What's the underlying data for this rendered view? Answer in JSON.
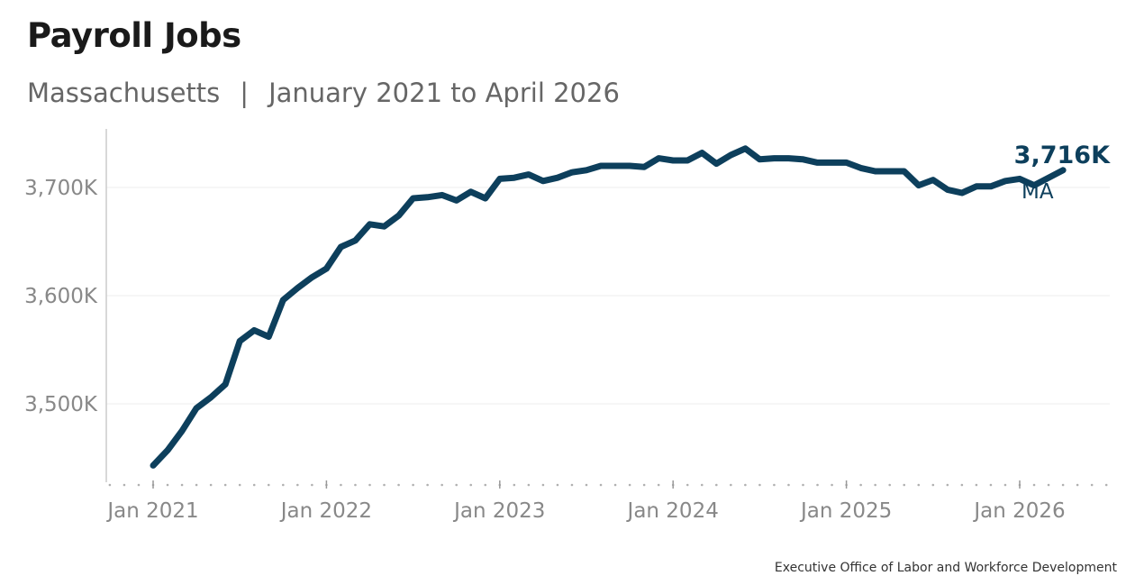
{
  "header": {
    "title": "Payroll Jobs",
    "subtitle_region": "Massachusetts",
    "subtitle_separator": "|",
    "subtitle_range": "January 2021 to April 2026"
  },
  "footer": {
    "source": "Executive Office of Labor and Workforce Development"
  },
  "colors": {
    "line": "#0d3f5c",
    "gridline": "#eeeeee",
    "axis": "#cccccc",
    "tick_label": "#888888"
  },
  "chart_data": {
    "type": "line",
    "title": "Payroll Jobs",
    "subtitle": "Massachusetts | January 2021 to April 2026",
    "xlabel": "",
    "ylabel": "",
    "y_unit": "thousands of jobs",
    "ylim": [
      3420,
      3770
    ],
    "yticks": [
      3500,
      3600,
      3700
    ],
    "ytick_labels": [
      "3,500K",
      "3,600K",
      "3,700K"
    ],
    "xtick_years": [
      2021,
      2022,
      2023,
      2024,
      2025,
      2026
    ],
    "xtick_labels": [
      "Jan 2021",
      "Jan 2022",
      "Jan 2023",
      "Jan 2024",
      "Jan 2025",
      "Jan 2026"
    ],
    "grid": "horizontal",
    "start": "2021-01",
    "end": "2026-04",
    "series": [
      {
        "name": "MA",
        "end_label": "3,716K",
        "dates": [
          "2021-01",
          "2021-02",
          "2021-03",
          "2021-04",
          "2021-05",
          "2021-06",
          "2021-07",
          "2021-08",
          "2021-09",
          "2021-10",
          "2021-11",
          "2021-12",
          "2022-01",
          "2022-02",
          "2022-03",
          "2022-04",
          "2022-05",
          "2022-06",
          "2022-07",
          "2022-08",
          "2022-09",
          "2022-10",
          "2022-11",
          "2022-12",
          "2023-01",
          "2023-02",
          "2023-03",
          "2023-04",
          "2023-05",
          "2023-06",
          "2023-07",
          "2023-08",
          "2023-09",
          "2023-10",
          "2023-11",
          "2023-12",
          "2024-01",
          "2024-02",
          "2024-03",
          "2024-04",
          "2024-05",
          "2024-06",
          "2024-07",
          "2024-08",
          "2024-09",
          "2024-10",
          "2024-11",
          "2024-12",
          "2025-01",
          "2025-02",
          "2025-03",
          "2025-04",
          "2025-05",
          "2025-06",
          "2025-07",
          "2025-08",
          "2025-09",
          "2025-10",
          "2025-11",
          "2025-12",
          "2026-01",
          "2026-02",
          "2026-03",
          "2026-04"
        ],
        "values": [
          3443,
          3457,
          3475,
          3496,
          3506,
          3518,
          3558,
          3568,
          3562,
          3596,
          3607,
          3617,
          3625,
          3645,
          3651,
          3666,
          3664,
          3674,
          3690,
          3691,
          3693,
          3688,
          3696,
          3690,
          3708,
          3709,
          3712,
          3706,
          3709,
          3714,
          3716,
          3720,
          3720,
          3720,
          3719,
          3727,
          3725,
          3725,
          3732,
          3722,
          3730,
          3736,
          3726,
          3727,
          3727,
          3726,
          3723,
          3723,
          3723,
          3718,
          3715,
          3715,
          3715,
          3702,
          3707,
          3698,
          3695,
          3701,
          3701,
          3706,
          3708,
          3702,
          3709,
          3716
        ]
      }
    ]
  }
}
